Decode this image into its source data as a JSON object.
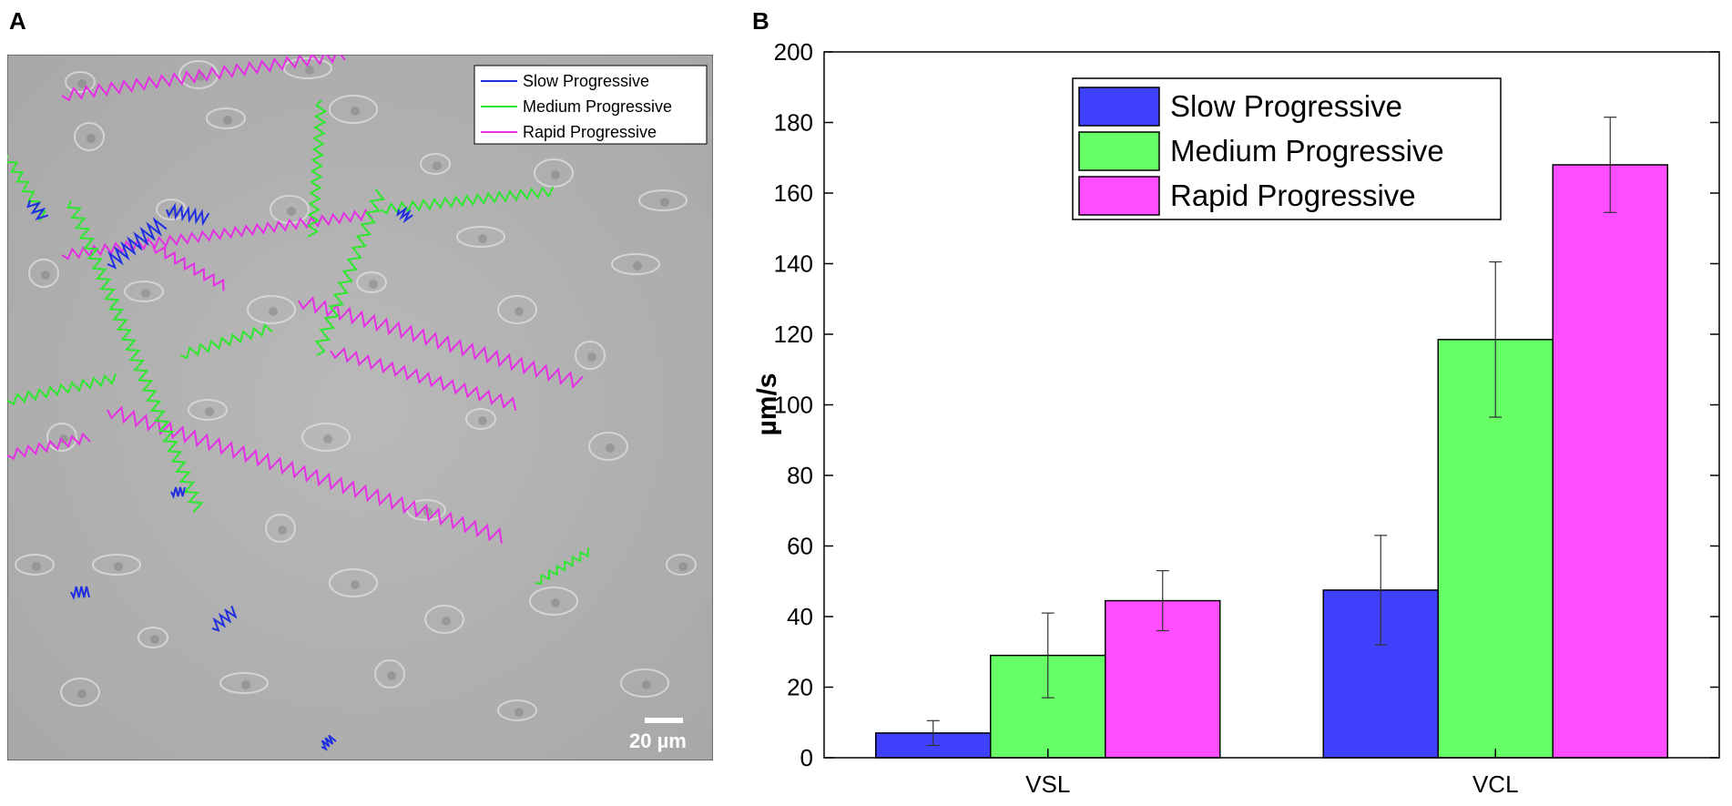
{
  "panel_a": {
    "label": "A",
    "legend": [
      {
        "name": "Slow Progressive",
        "color": "#1e2ee0"
      },
      {
        "name": "Medium Progressive",
        "color": "#2ee82e"
      },
      {
        "name": "Rapid Progressive",
        "color": "#e62ee6"
      }
    ],
    "scale_bar_label": "20 µm"
  },
  "panel_b": {
    "label": "B"
  },
  "chart_data": {
    "type": "bar",
    "categories": [
      "VSL",
      "VCL"
    ],
    "series": [
      {
        "name": "Slow Progressive",
        "color": "#4040ff",
        "values": [
          7,
          47.5
        ],
        "errors": [
          3.5,
          15.5
        ]
      },
      {
        "name": "Medium Progressive",
        "color": "#66ff66",
        "values": [
          29,
          118.5
        ],
        "errors": [
          12,
          22
        ]
      },
      {
        "name": "Rapid Progressive",
        "color": "#ff4dff",
        "values": [
          44.5,
          168
        ],
        "errors": [
          8.5,
          13.5
        ]
      }
    ],
    "ylabel": "µm/s",
    "xlabel": "",
    "ylim": [
      0,
      200
    ],
    "yticks": [
      0,
      20,
      40,
      60,
      80,
      100,
      120,
      140,
      160,
      180,
      200
    ],
    "legend_position": "top-left"
  }
}
